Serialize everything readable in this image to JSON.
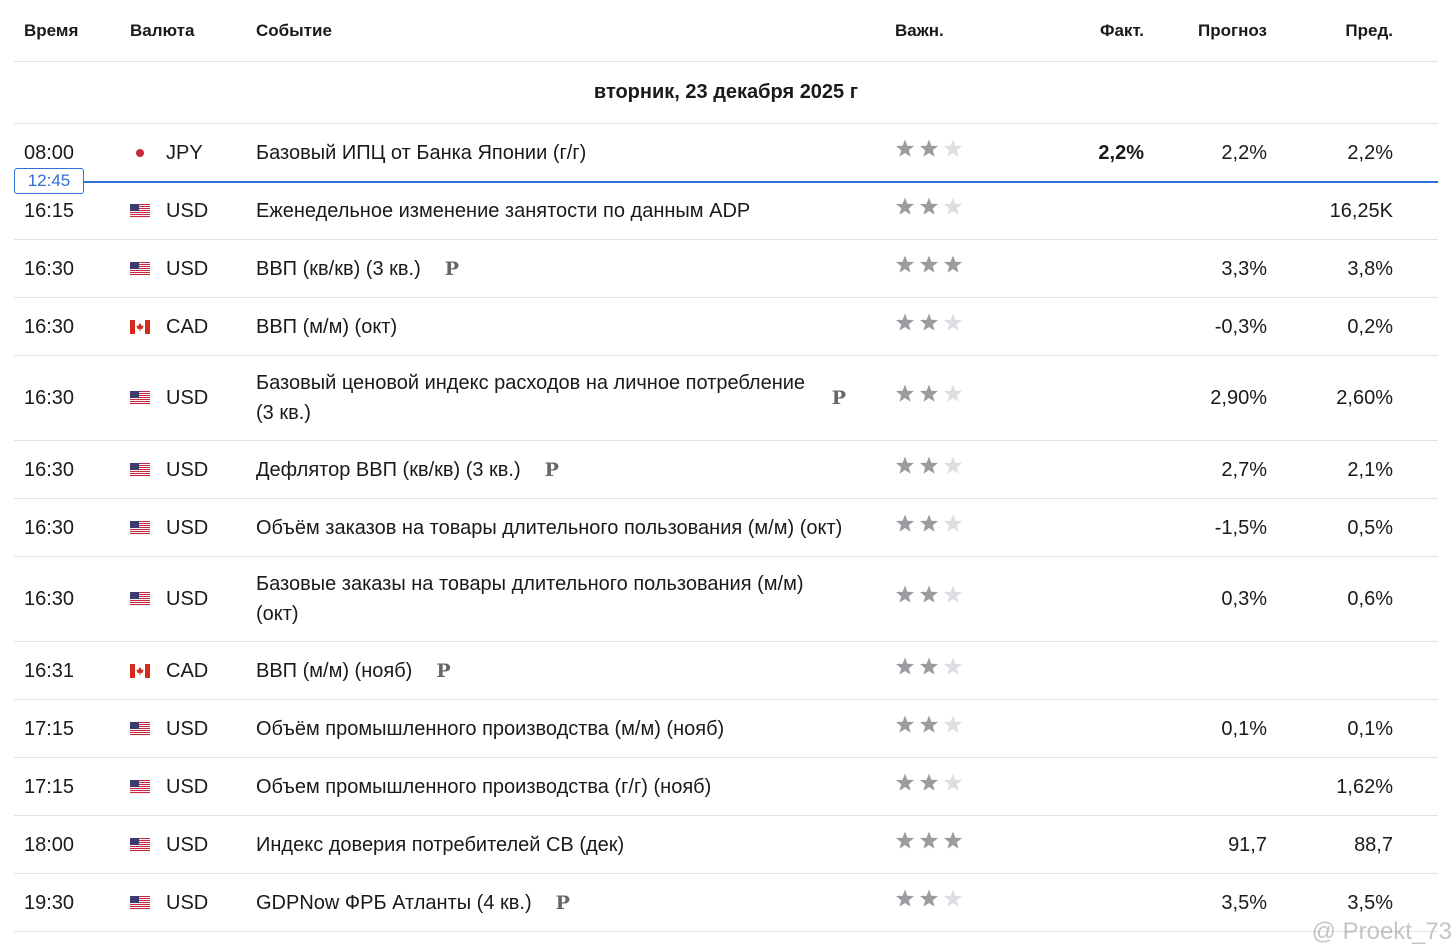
{
  "header": {
    "columns": [
      "Время",
      "Валюта",
      "Событие",
      "Важн.",
      "Факт.",
      "Прогноз",
      "Пред."
    ]
  },
  "date": "вторник, 23 декабря 2025 г",
  "current_time": "12:45",
  "rows": [
    {
      "time": "08:00",
      "flag": "jp",
      "currency": "JPY",
      "event": "Базовый ИПЦ от Банка Японии (г/г)",
      "importance": 2,
      "actual": "2,2%",
      "forecast": "2,2%",
      "previous": "2,2%"
    },
    {
      "time": "16:15",
      "flag": "us",
      "currency": "USD",
      "event": "Еженедельное изменение занятости по данным ADP",
      "importance": 2,
      "previous": "16,25K"
    },
    {
      "time": "16:30",
      "flag": "us",
      "currency": "USD",
      "event": "ВВП (кв/кв) (3 кв.)",
      "badge": "P",
      "importance": 3,
      "forecast": "3,3%",
      "previous": "3,8%"
    },
    {
      "time": "16:30",
      "flag": "ca",
      "currency": "CAD",
      "event": "ВВП (м/м) (окт)",
      "importance": 2,
      "forecast": "-0,3%",
      "previous": "0,2%"
    },
    {
      "time": "16:30",
      "flag": "us",
      "currency": "USD",
      "event": "Базовый ценовой индекс расходов на личное потребление  (3 кв.)",
      "badge": "P",
      "importance": 2,
      "forecast": "2,90%",
      "previous": "2,60%"
    },
    {
      "time": "16:30",
      "flag": "us",
      "currency": "USD",
      "event": "Дефлятор ВВП (кв/кв) (3 кв.)",
      "badge": "P",
      "importance": 2,
      "forecast": "2,7%",
      "previous": "2,1%"
    },
    {
      "time": "16:30",
      "flag": "us",
      "currency": "USD",
      "event": "Объём заказов на товары длительного пользования (м/м) (окт)",
      "importance": 2,
      "forecast": "-1,5%",
      "previous": "0,5%"
    },
    {
      "time": "16:30",
      "flag": "us",
      "currency": "USD",
      "event": "Базовые заказы на товары длительного пользования (м/м) (окт)",
      "importance": 2,
      "forecast": "0,3%",
      "previous": "0,6%"
    },
    {
      "time": "16:31",
      "flag": "ca",
      "currency": "CAD",
      "event": "ВВП (м/м) (нояб)",
      "badge": "P",
      "importance": 2
    },
    {
      "time": "17:15",
      "flag": "us",
      "currency": "USD",
      "event": "Объём промышленного производства (м/м) (нояб)",
      "importance": 2,
      "forecast": "0,1%",
      "previous": "0,1%"
    },
    {
      "time": "17:15",
      "flag": "us",
      "currency": "USD",
      "event": "Объем промышленного производства (г/г) (нояб)",
      "importance": 2,
      "previous": "1,62%"
    },
    {
      "time": "18:00",
      "flag": "us",
      "currency": "USD",
      "event": "Индекс доверия потребителей CB  (дек)",
      "importance": 3,
      "forecast": "91,7",
      "previous": "88,7"
    },
    {
      "time": "19:30",
      "flag": "us",
      "currency": "USD",
      "event": "GDPNow ФРБ Атланты  (4 кв.)",
      "badge": "P",
      "importance": 2,
      "forecast": "3,5%",
      "previous": "3,5%"
    }
  ],
  "watermark": "@ Proekt_73"
}
